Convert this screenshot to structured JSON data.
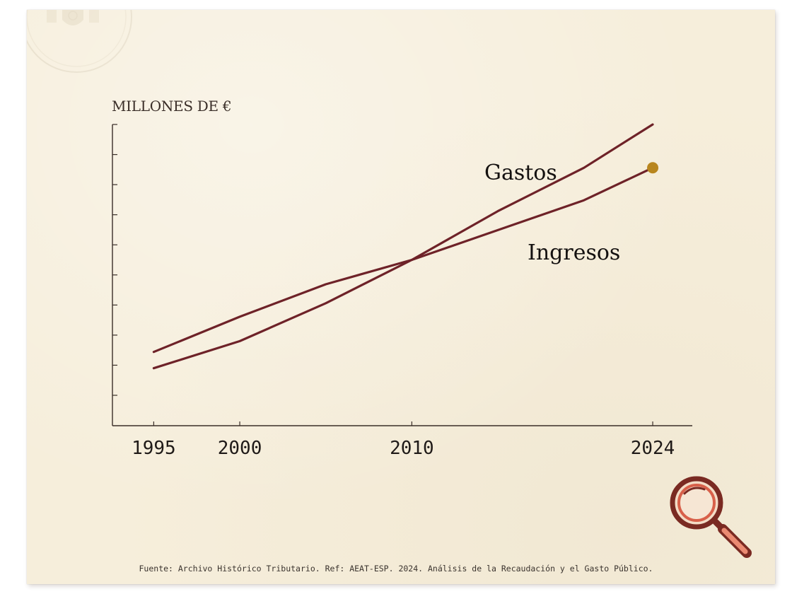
{
  "colors": {
    "paper": "#f6eedb",
    "line": "#6e2228",
    "axis": "#3a2e28",
    "endpoint": "#b8861e"
  },
  "icons": {
    "seal": "embossed-seal-icon",
    "magnifier": "magnifying-glass-icon"
  },
  "source_note": "Fuente: Archivo Histórico Tributario. Ref: AEAT-ESP. 2024. Análisis de la Recaudación y el Gasto Público.",
  "chart_data": {
    "type": "line",
    "ylabel": "MILLONES DE €",
    "xlabel": "",
    "title": "",
    "x_ticks": [
      1995,
      2000,
      2010,
      2024
    ],
    "xlim": [
      1992.6,
      2026.3
    ],
    "ylim": [
      0,
      10
    ],
    "y_tick_count": 10,
    "y_tick_labels_shown": false,
    "grid": false,
    "legend": "inline labels near lines",
    "series": [
      {
        "name": "Gastos",
        "x": [
          1995,
          2000,
          2005,
          2010,
          2015,
          2020,
          2024
        ],
        "y": [
          1.0,
          2.0,
          3.4,
          5.0,
          6.8,
          8.4,
          10.0
        ]
      },
      {
        "name": "Ingresos",
        "x": [
          1995,
          2000,
          2005,
          2010,
          2015,
          2020,
          2024
        ],
        "y": [
          1.6,
          2.9,
          4.1,
          5.0,
          6.1,
          7.2,
          8.4
        ],
        "endpoint_marker": true
      }
    ],
    "series_label_positions": {
      "Gastos": "above line near 2016",
      "Ingresos": "below line near 2019"
    }
  }
}
